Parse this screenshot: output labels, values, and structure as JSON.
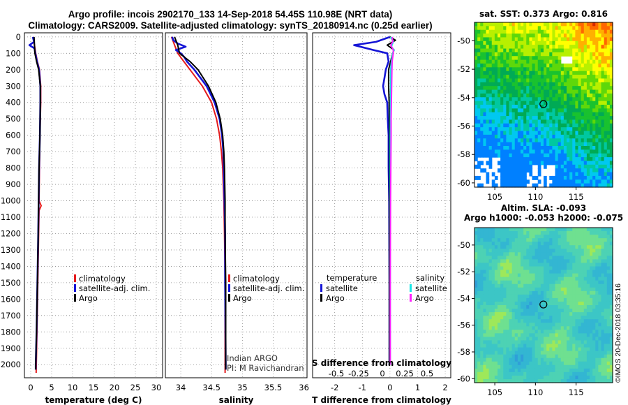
{
  "header": {
    "line1": "Argo profile: incois 2902170_133 14-Sep-2018 54.45S 110.98E (NRT data)",
    "line2": "Climatology: CARS2009. Satellite-adjusted climatology: synTS_20180914.nc (0.25d earlier)"
  },
  "colors": {
    "climatology": "#e41a1c",
    "satellite": "#1515d6",
    "argo": "#000000",
    "sat_salinity": "#19e6e6",
    "argo_salinity": "#ff22ff",
    "grid": "#888888"
  },
  "depth_axis": {
    "ticks": [
      0,
      100,
      200,
      300,
      400,
      500,
      600,
      700,
      800,
      900,
      1000,
      1100,
      1200,
      1300,
      1400,
      1500,
      1600,
      1700,
      1800,
      1900,
      2000
    ],
    "min": -25,
    "max": 2080
  },
  "chart_data": [
    {
      "type": "line",
      "name": "temperature-profile",
      "xlabel": "temperature (deg C)",
      "xlim": [
        -1.5,
        31.5
      ],
      "xticks": [
        0,
        5,
        10,
        15,
        20,
        25,
        30
      ],
      "ylim": [
        -25,
        2080
      ],
      "legend": [
        "climatology",
        "satellite-adj. clim.",
        "Argo"
      ],
      "series": [
        {
          "name": "climatology",
          "color": "#e41a1c",
          "depth": [
            0,
            50,
            100,
            150,
            200,
            300,
            400,
            500,
            600,
            800,
            900,
            1000,
            1030,
            1060,
            1200,
            1500,
            1800,
            2050
          ],
          "values": [
            0.6,
            0.9,
            1.2,
            1.6,
            2.1,
            2.4,
            2.4,
            2.3,
            2.2,
            2.1,
            2.05,
            2.0,
            2.5,
            2.0,
            1.9,
            1.7,
            1.5,
            1.3
          ]
        },
        {
          "name": "satellite-adj. clim.",
          "color": "#1515d6",
          "depth": [
            0,
            30,
            50,
            70,
            100,
            150,
            200,
            300,
            400,
            600,
            800,
            1000,
            1200,
            1500,
            1800,
            2000,
            2030
          ],
          "values": [
            0.5,
            0.8,
            -0.3,
            0.9,
            1.1,
            1.5,
            2.0,
            2.3,
            2.3,
            2.2,
            2.0,
            1.9,
            1.8,
            1.6,
            1.4,
            1.2,
            1.2
          ]
        },
        {
          "name": "Argo",
          "color": "#000000",
          "depth": [
            0,
            50,
            100,
            150,
            200,
            300,
            400,
            600,
            800,
            1000,
            1200,
            1500,
            1800,
            2000,
            2030
          ],
          "values": [
            0.8,
            0.9,
            1.0,
            1.4,
            1.9,
            2.3,
            2.3,
            2.2,
            2.0,
            1.9,
            1.8,
            1.6,
            1.4,
            1.2,
            1.2
          ]
        }
      ]
    },
    {
      "type": "line",
      "name": "salinity-profile",
      "xlabel": "salinity",
      "xlim": [
        33.75,
        36.05
      ],
      "xticks": [
        34,
        34.5,
        35,
        35.5,
        36
      ],
      "ylim": [
        -25,
        2080
      ],
      "legend": [
        "climatology",
        "satellite-adj. clim.",
        "Argo"
      ],
      "series": [
        {
          "name": "climatology",
          "color": "#e41a1c",
          "depth": [
            0,
            50,
            100,
            150,
            200,
            300,
            400,
            500,
            600,
            700,
            800,
            1000,
            1200,
            1500,
            2000,
            2050
          ],
          "values": [
            33.85,
            33.9,
            33.95,
            34.05,
            34.15,
            34.35,
            34.5,
            34.58,
            34.63,
            34.66,
            34.68,
            34.7,
            34.71,
            34.72,
            34.72,
            34.72
          ]
        },
        {
          "name": "satellite-adj. clim.",
          "color": "#1515d6",
          "depth": [
            0,
            20,
            40,
            60,
            80,
            100,
            120,
            150,
            200,
            300,
            400,
            500,
            600,
            700,
            800,
            1000,
            1200,
            1500,
            2000,
            2030
          ],
          "values": [
            33.86,
            33.88,
            33.95,
            34.08,
            33.92,
            34.0,
            34.05,
            34.1,
            34.22,
            34.42,
            34.55,
            34.63,
            34.67,
            34.69,
            34.7,
            34.71,
            34.72,
            34.72,
            34.73,
            34.73
          ]
        },
        {
          "name": "Argo",
          "color": "#000000",
          "depth": [
            0,
            50,
            100,
            150,
            200,
            300,
            400,
            500,
            600,
            700,
            800,
            1000,
            1200,
            1500,
            2000,
            2030
          ],
          "values": [
            33.9,
            33.95,
            33.98,
            34.15,
            34.28,
            34.45,
            34.57,
            34.64,
            34.68,
            34.7,
            34.71,
            34.72,
            34.72,
            34.73,
            34.73,
            34.73
          ]
        }
      ]
    },
    {
      "type": "line",
      "name": "difference-profile",
      "xlabel": "T difference from climatology",
      "xlim": [
        -2.8,
        2.2
      ],
      "xticks": [
        -2,
        -1,
        0,
        1,
        2
      ],
      "s_title": "S difference from climatology",
      "s_ticks": [
        "-0.5",
        "-0.25",
        "0",
        "0.25",
        "0.5"
      ],
      "ylim": [
        -25,
        2080
      ],
      "legend_temperature": {
        "title": "temperature",
        "items": [
          "satellite",
          "Argo"
        ]
      },
      "legend_salinity": {
        "title": "salinity",
        "items": [
          "satellite",
          "Argo"
        ]
      },
      "series": [
        {
          "name": "temperature satellite",
          "color": "#1515d6",
          "depth": [
            0,
            30,
            50,
            80,
            100,
            150,
            200,
            250,
            300,
            350,
            400,
            500,
            600,
            800,
            1000,
            1500,
            2000
          ],
          "values": [
            0,
            -0.5,
            -1.3,
            -0.6,
            -0.1,
            -0.05,
            -0.15,
            -0.2,
            -0.25,
            -0.2,
            -0.1,
            -0.08,
            -0.05,
            -0.05,
            -0.03,
            -0.02,
            -0.02
          ]
        },
        {
          "name": "temperature Argo",
          "color": "#000000",
          "depth": [
            0,
            20,
            50,
            80,
            100,
            200,
            300,
            400,
            600,
            800,
            1000,
            1500,
            2000
          ],
          "values": [
            0,
            0.2,
            -0.1,
            0.15,
            0.1,
            -0.05,
            -0.05,
            -0.03,
            -0.02,
            -0.02,
            -0.02,
            -0.02,
            -0.02
          ]
        },
        {
          "name": "salinity satellite",
          "color": "#19e6e6",
          "depth": [
            0,
            30,
            60,
            80,
            100,
            150,
            200,
            300,
            400,
            600,
            800,
            1000,
            1500,
            2000
          ],
          "values": [
            0.02,
            0.12,
            0.05,
            0.15,
            0.1,
            0.05,
            0.02,
            0.02,
            0.02,
            0.01,
            0.01,
            0.01,
            0.01,
            0.01
          ]
        },
        {
          "name": "salinity Argo",
          "color": "#ff22ff",
          "depth": [
            0,
            30,
            50,
            80,
            100,
            150,
            200,
            300,
            400,
            500,
            600,
            800,
            1000,
            1500,
            2000
          ],
          "values": [
            0.08,
            0.1,
            0.03,
            0.12,
            0.12,
            0.08,
            0.07,
            0.06,
            0.05,
            0.04,
            0.04,
            0.03,
            0.02,
            0.01,
            0.01
          ]
        }
      ]
    },
    {
      "type": "heatmap",
      "name": "sst-map",
      "title": "sat. SST: 0.373 Argo: 0.816",
      "x_ticks": [
        105,
        110,
        115
      ],
      "y_ticks": [
        -50,
        -52,
        -54,
        -56,
        -58,
        -60
      ],
      "xlim": [
        102.5,
        119.5
      ],
      "ylim": [
        -60.3,
        -48.7
      ],
      "marker": {
        "lon": 110.98,
        "lat": -54.45
      }
    },
    {
      "type": "heatmap",
      "name": "sla-map",
      "title": "Altim. SLA: -0.093",
      "subtitle": "Argo h1000: -0.053 h2000: -0.075",
      "x_ticks": [
        105,
        110,
        115
      ],
      "y_ticks": [
        -50,
        -52,
        -54,
        -56,
        -58,
        -60
      ],
      "xlim": [
        102.5,
        119.5
      ],
      "ylim": [
        -60.3,
        -48.7
      ],
      "marker": {
        "lon": 110.98,
        "lat": -54.45
      }
    }
  ],
  "annotations": {
    "institution": "Indian ARGO",
    "pi": "PI: M Ravichandran",
    "credit": "©IMOS 20-Dec-2018 03:35:16"
  }
}
